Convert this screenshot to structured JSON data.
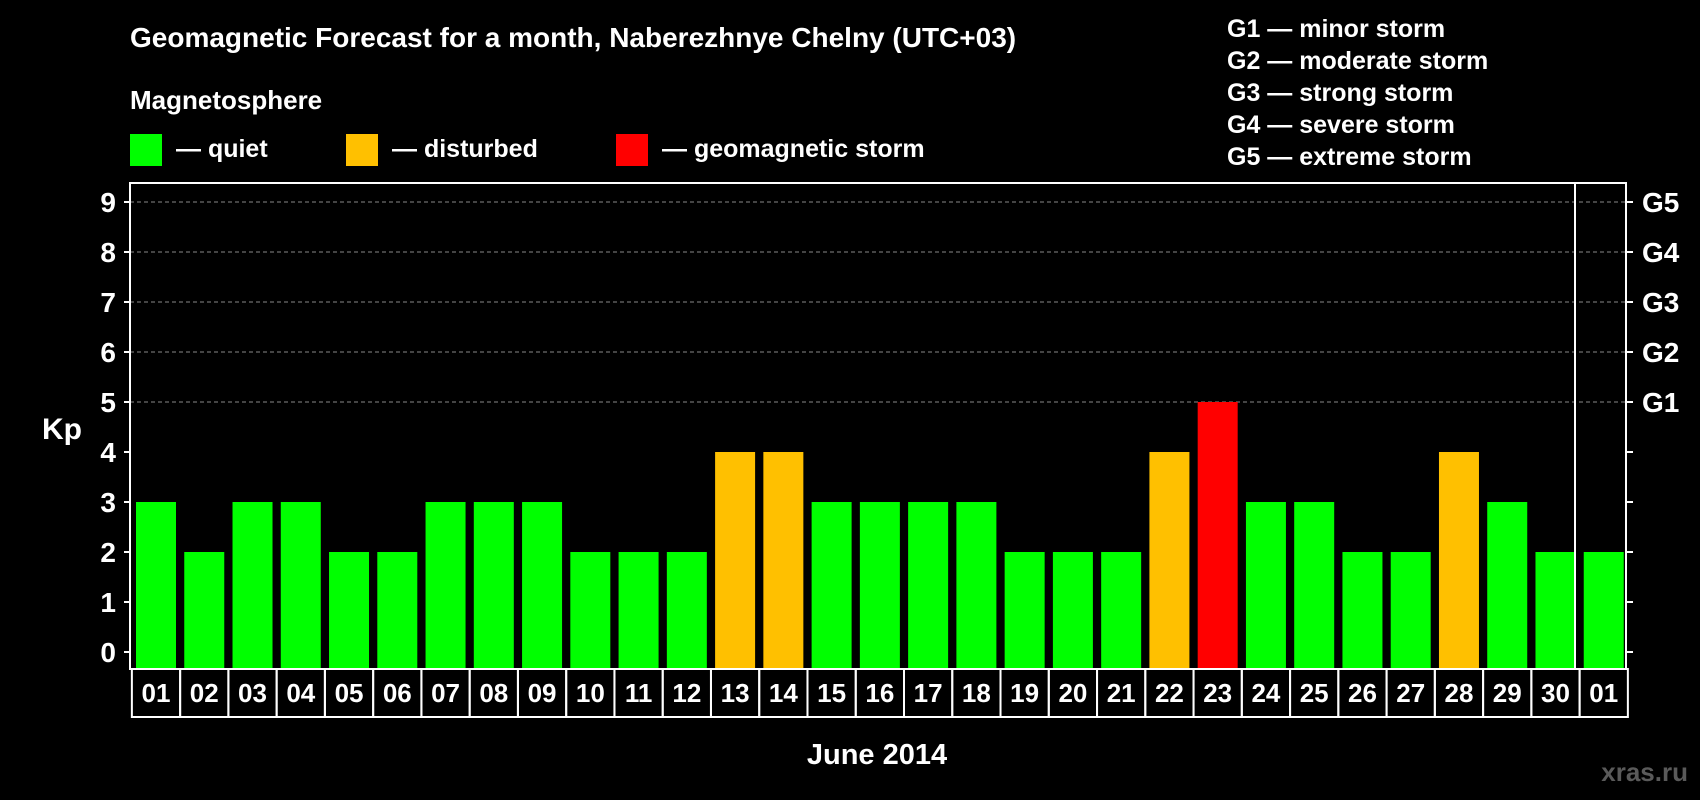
{
  "chart_data": {
    "type": "bar",
    "title": "Geomagnetic Forecast for a month, Naberezhnye Chelny (UTC+03)",
    "legend_title": "Magnetosphere",
    "legend": [
      {
        "key": "quiet",
        "label": "— quiet",
        "color": "#00ff00"
      },
      {
        "key": "disturbed",
        "label": "— disturbed",
        "color": "#ffc000"
      },
      {
        "key": "storm",
        "label": "— geomagnetic storm",
        "color": "#ff0000"
      }
    ],
    "storm_scale": [
      "G1 — minor storm",
      "G2 — moderate storm",
      "G3 — strong storm",
      "G4 — severe storm",
      "G5 — extreme storm"
    ],
    "ylabel": "Kp",
    "ylim": [
      0,
      9
    ],
    "yticks": [
      0,
      1,
      2,
      3,
      4,
      5,
      6,
      7,
      8,
      9
    ],
    "y2ticks": [
      {
        "value": 5,
        "label": "G1"
      },
      {
        "value": 6,
        "label": "G2"
      },
      {
        "value": 7,
        "label": "G3"
      },
      {
        "value": 8,
        "label": "G4"
      },
      {
        "value": 9,
        "label": "G5"
      }
    ],
    "xlabel": "June 2014",
    "categories": [
      "01",
      "02",
      "03",
      "04",
      "05",
      "06",
      "07",
      "08",
      "09",
      "10",
      "11",
      "12",
      "13",
      "14",
      "15",
      "16",
      "17",
      "18",
      "19",
      "20",
      "21",
      "22",
      "23",
      "24",
      "25",
      "26",
      "27",
      "28",
      "29",
      "30",
      "01"
    ],
    "values": [
      3,
      2,
      3,
      3,
      2,
      2,
      3,
      3,
      3,
      2,
      2,
      2,
      4,
      4,
      3,
      3,
      3,
      3,
      2,
      2,
      2,
      4,
      5,
      3,
      3,
      2,
      2,
      4,
      3,
      2,
      2
    ],
    "status": [
      "quiet",
      "quiet",
      "quiet",
      "quiet",
      "quiet",
      "quiet",
      "quiet",
      "quiet",
      "quiet",
      "quiet",
      "quiet",
      "quiet",
      "disturbed",
      "disturbed",
      "quiet",
      "quiet",
      "quiet",
      "quiet",
      "quiet",
      "quiet",
      "quiet",
      "disturbed",
      "storm",
      "quiet",
      "quiet",
      "quiet",
      "quiet",
      "disturbed",
      "quiet",
      "quiet",
      "quiet"
    ],
    "watermark": "xras.ru"
  }
}
